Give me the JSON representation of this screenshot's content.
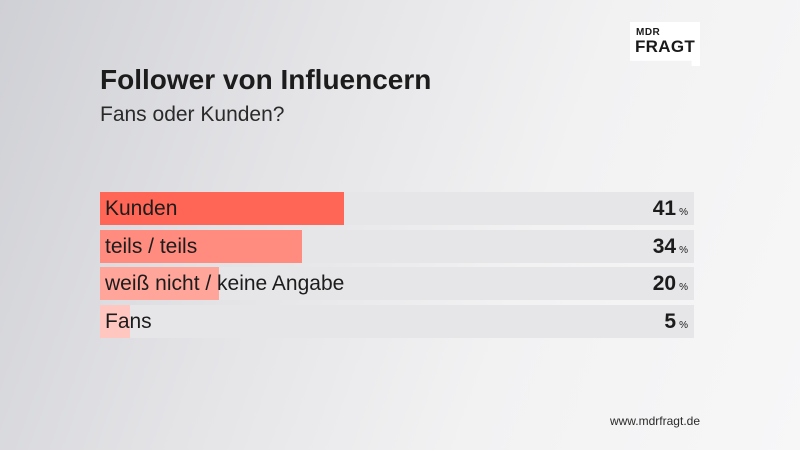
{
  "logo": {
    "line1": "MDR",
    "line2": "FRAGT"
  },
  "source": "www.mdrfragt.de",
  "colors": {
    "bars": [
      "#ff6656",
      "#ff8c7f",
      "#ffa59a",
      "#ffc7c0"
    ],
    "track": "#e6e6e8"
  },
  "chart_data": {
    "type": "bar",
    "orientation": "horizontal",
    "title": "Follower von Influencern",
    "subtitle": "Fans oder Kunden?",
    "categories": [
      "Kunden",
      "teils / teils",
      "weiß nicht / keine Angabe",
      "Fans"
    ],
    "values": [
      41,
      34,
      20,
      5
    ],
    "unit": "%",
    "xlim": [
      0,
      100
    ],
    "grid": false,
    "legend": "none"
  }
}
